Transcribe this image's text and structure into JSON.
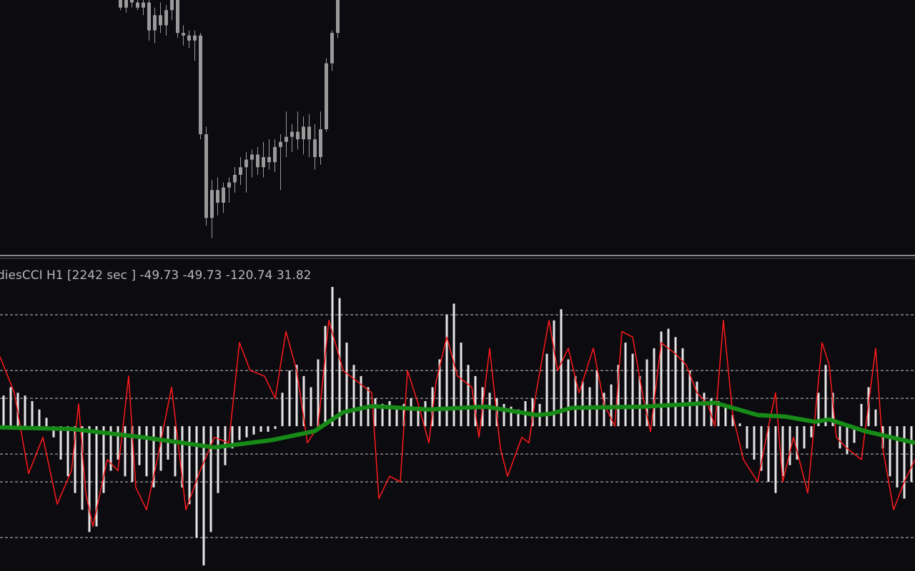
{
  "chart_data": [
    {
      "type": "candlestick",
      "color": "#9a9a9a",
      "xlim": [
        0,
        128
      ],
      "ylim": [
        0,
        100
      ],
      "x": [
        16.8,
        17.6,
        18.4,
        19.2,
        20,
        20.8,
        21.6,
        22.4,
        23.2,
        24,
        24.8,
        25.6,
        26.4,
        27.2,
        28,
        28.8,
        29.6,
        30.4,
        31.2,
        32,
        32.8,
        33.6,
        34.4,
        35.2,
        36,
        36.8,
        37.6,
        38.4,
        39.2,
        40,
        40.8,
        41.6,
        42.4,
        43.2,
        44,
        44.8,
        45.6,
        46.4,
        47.2
      ],
      "open": [
        100,
        97,
        100,
        99,
        97,
        99,
        88,
        94,
        90,
        96,
        100,
        87,
        86,
        84,
        86,
        47,
        14,
        25,
        20,
        26,
        28,
        31,
        34,
        37,
        39,
        34,
        38,
        36,
        42,
        44,
        46,
        48,
        45,
        50,
        45,
        38,
        49,
        75,
        87
      ],
      "high": [
        102,
        102,
        103,
        101,
        101,
        100,
        97,
        99,
        98,
        102,
        101,
        90,
        88,
        88,
        87,
        50,
        29,
        30,
        28,
        30,
        34,
        38,
        40,
        41,
        42,
        44,
        45,
        45,
        47,
        56,
        51,
        56,
        54,
        55,
        51,
        56,
        77,
        88,
        102
      ],
      "low": [
        96,
        95,
        97,
        96,
        94,
        84,
        83,
        87,
        86,
        92,
        85,
        82,
        81,
        76,
        45,
        11,
        6,
        15,
        16,
        20,
        24,
        27,
        24,
        30,
        31,
        30,
        33,
        32,
        25,
        38,
        40,
        41,
        39,
        38,
        33,
        35,
        48,
        72,
        85
      ],
      "close": [
        97,
        100,
        99,
        97,
        99,
        88,
        94,
        90,
        96,
        100,
        87,
        86,
        84,
        86,
        47,
        14,
        25,
        20,
        26,
        28,
        31,
        34,
        37,
        39,
        34,
        38,
        36,
        42,
        44,
        46,
        48,
        45,
        50,
        45,
        38,
        49,
        75,
        87,
        100
      ]
    },
    {
      "type": "cci",
      "title": "diesCCI H1 [2242 sec ] -49.73 -49.73 -120.74 31.82",
      "xlim": [
        0,
        128
      ],
      "ylim": [
        -260,
        300
      ],
      "levels": [
        200,
        100,
        50,
        -50,
        -100,
        -200
      ],
      "histogram": {
        "color": "#e6e6e6",
        "values": [
          55,
          70,
          60,
          55,
          45,
          30,
          15,
          -20,
          -60,
          -90,
          -120,
          -150,
          -190,
          -180,
          -120,
          -80,
          -60,
          -90,
          -100,
          -70,
          -90,
          -110,
          -80,
          -60,
          -90,
          -110,
          -140,
          -200,
          -250,
          -190,
          -120,
          -70,
          -40,
          -25,
          -20,
          -15,
          -10,
          -10,
          -5,
          60,
          100,
          110,
          90,
          70,
          120,
          180,
          250,
          230,
          150,
          110,
          90,
          70,
          50,
          40,
          45,
          30,
          40,
          50,
          35,
          45,
          70,
          120,
          200,
          220,
          150,
          110,
          90,
          70,
          60,
          50,
          40,
          35,
          30,
          45,
          50,
          40,
          130,
          190,
          210,
          120,
          90,
          80,
          70,
          100,
          60,
          75,
          110,
          150,
          130,
          90,
          120,
          140,
          170,
          175,
          160,
          140,
          100,
          80,
          60,
          50,
          45,
          40,
          20,
          5,
          -40,
          -60,
          -80,
          -100,
          -120,
          -90,
          -70,
          -60,
          -40,
          -20,
          60,
          110,
          60,
          -40,
          -50,
          -30,
          40,
          70,
          30,
          -40,
          -90,
          -110,
          -130,
          -100
        ]
      },
      "series": [
        {
          "color": "#ff1a1a",
          "x": [
            0,
            2,
            4,
            6,
            8,
            10,
            11,
            12,
            13,
            15,
            16.5,
            18,
            19,
            20.5,
            22,
            24,
            26,
            28,
            30,
            32,
            33.5,
            35,
            37,
            38.5,
            40,
            41.5,
            43,
            44.5,
            46,
            48,
            50,
            52,
            53,
            54.5,
            56,
            57,
            58.5,
            60,
            61,
            62.5,
            64,
            66,
            67,
            68.5,
            70,
            71,
            73,
            74,
            75,
            76.8,
            78,
            79.5,
            81,
            83,
            84.5,
            86,
            87,
            88.5,
            90,
            91,
            92.5,
            94.5,
            96,
            97.5,
            99,
            100,
            101.2,
            102.5,
            104,
            106,
            107.5,
            108.5,
            109.5,
            111,
            113,
            115,
            116,
            117,
            118.5,
            120.5,
            122.5,
            123.5,
            125,
            126.5,
            128
          ],
          "values": [
            125,
            60,
            -85,
            -20,
            -140,
            -80,
            40,
            -120,
            -180,
            -60,
            -80,
            90,
            -110,
            -150,
            -60,
            70,
            -150,
            -80,
            -20,
            -30,
            150,
            100,
            90,
            50,
            170,
            100,
            -30,
            0,
            190,
            100,
            80,
            60,
            -130,
            -90,
            -100,
            100,
            40,
            -30,
            80,
            160,
            90,
            70,
            -20,
            140,
            -40,
            -90,
            -20,
            -30,
            60,
            190,
            100,
            140,
            60,
            140,
            40,
            0,
            170,
            160,
            50,
            -10,
            150,
            130,
            110,
            60,
            40,
            0,
            190,
            20,
            -60,
            -100,
            0,
            60,
            -100,
            -20,
            -120,
            150,
            110,
            -20,
            -40,
            -60,
            140,
            -40,
            -150,
            -100,
            -60
          ]
        },
        {
          "color": "#178a17",
          "x": [
            0,
            10,
            20,
            30,
            38,
            44,
            48,
            52,
            60,
            68,
            75,
            77,
            80,
            90,
            100,
            106,
            110,
            114,
            116,
            121,
            128
          ],
          "values": [
            -2,
            -5,
            -20,
            -38,
            -25,
            -9,
            25,
            36,
            30,
            35,
            20,
            22,
            33,
            35,
            42,
            20,
            17,
            8,
            12,
            -9,
            -30
          ]
        }
      ]
    }
  ]
}
